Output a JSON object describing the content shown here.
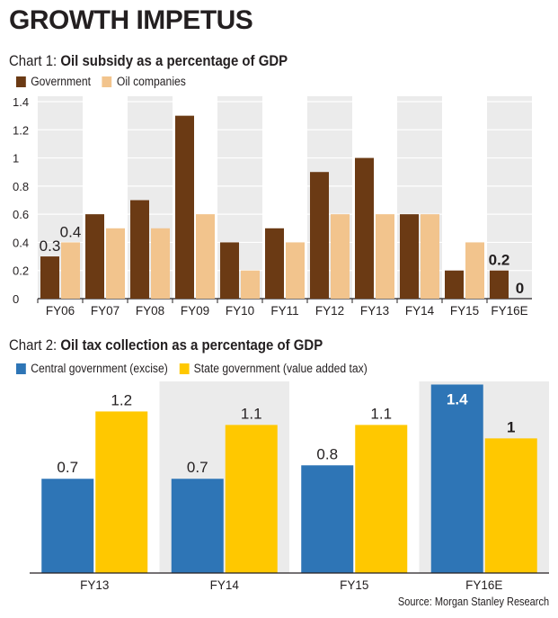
{
  "headline": "GROWTH IMPETUS",
  "source": "Source: Morgan Stanley Research",
  "colors": {
    "government": "#6b3a14",
    "oil_companies": "#f2c48d",
    "central": "#2e75b6",
    "state": "#ffc800",
    "panel_bg": "#ebebeb"
  },
  "charts": [
    {
      "title_prefix": "Chart 1: ",
      "title_main": "Oil subsidy as a percentage of GDP",
      "legend": [
        "Government",
        "Oil companies"
      ]
    },
    {
      "title_prefix": "Chart 2: ",
      "title_main": "Oil tax collection as a percentage of GDP",
      "legend": [
        "Central government (excise)",
        "State government (value added tax)"
      ]
    }
  ],
  "chart_data": [
    {
      "type": "bar",
      "title": "Chart 1: Oil subsidy as a percentage of GDP",
      "categories": [
        "FY06",
        "FY07",
        "FY08",
        "FY09",
        "FY10",
        "FY11",
        "FY12",
        "FY13",
        "FY14",
        "FY15",
        "FY16E"
      ],
      "series": [
        {
          "name": "Government",
          "values": [
            0.3,
            0.6,
            0.7,
            1.3,
            0.4,
            0.5,
            0.9,
            1.0,
            0.6,
            0.2,
            0.2
          ]
        },
        {
          "name": "Oil companies",
          "values": [
            0.4,
            0.5,
            0.5,
            0.6,
            0.2,
            0.4,
            0.6,
            0.6,
            0.6,
            0.4,
            0
          ]
        }
      ],
      "value_labels": [
        {
          "category": "FY06",
          "series": 0,
          "text": "0.3"
        },
        {
          "category": "FY06",
          "series": 1,
          "text": "0.4"
        },
        {
          "category": "FY16E",
          "series": 0,
          "text": "0.2",
          "bold": true
        },
        {
          "category": "FY16E",
          "series": 1,
          "text": "0",
          "bold": true
        }
      ],
      "yticks": [
        "0",
        "0.2",
        "0.4",
        "0.6",
        "0.8",
        "1",
        "1.2",
        "1.4"
      ],
      "ylim": [
        0,
        1.4
      ],
      "grid": true,
      "legend_position": "top-left"
    },
    {
      "type": "bar",
      "title": "Chart 2: Oil tax collection as a percentage of GDP",
      "categories": [
        "FY13",
        "FY14",
        "FY15",
        "FY16E"
      ],
      "series": [
        {
          "name": "Central government (excise)",
          "values": [
            0.7,
            0.7,
            0.8,
            1.4
          ],
          "labels": [
            "0.7",
            "0.7",
            "0.8",
            "1.4"
          ]
        },
        {
          "name": "State government (value added tax)",
          "values": [
            1.2,
            1.1,
            1.1,
            1.0
          ],
          "labels": [
            "1.2",
            "1.1",
            "1.1",
            "1"
          ]
        }
      ],
      "ylim": [
        0,
        1.45
      ],
      "grid": false,
      "legend_position": "top-left",
      "highlight_category": "FY16E"
    }
  ]
}
